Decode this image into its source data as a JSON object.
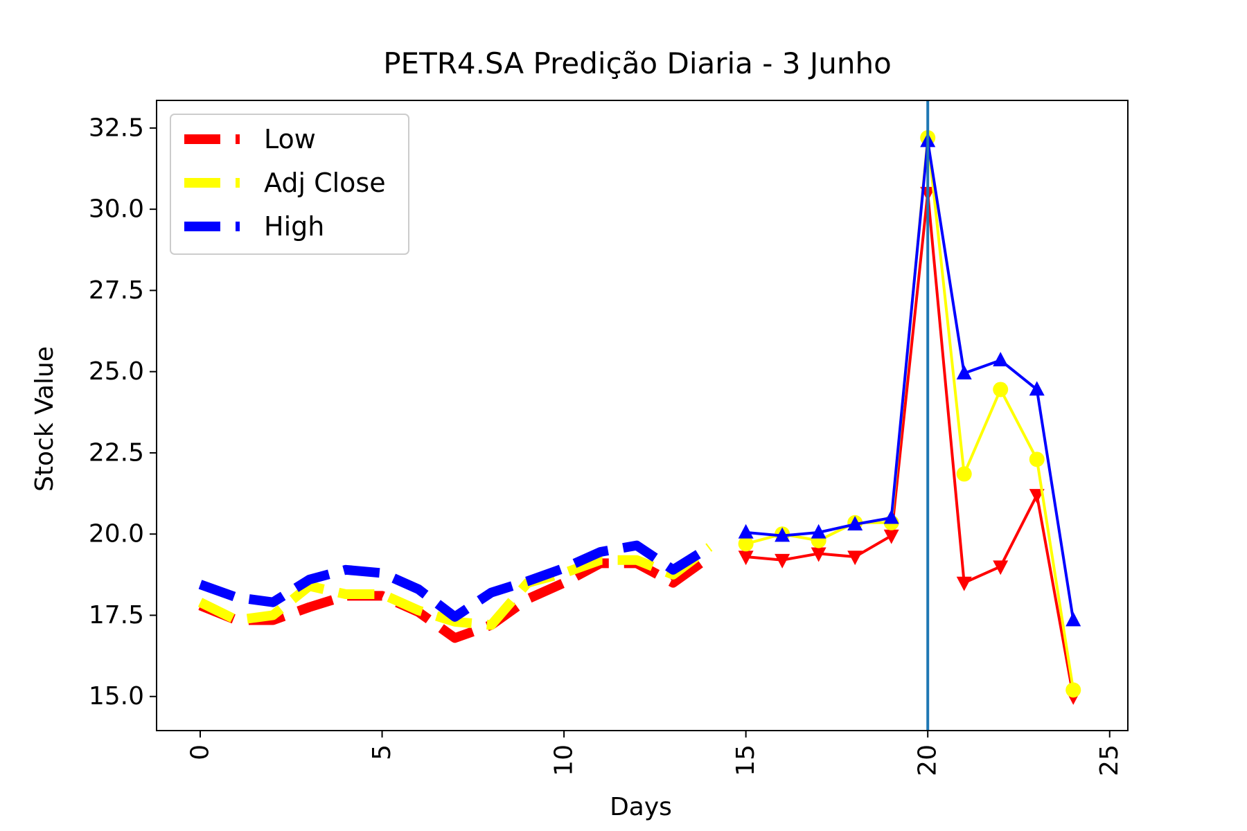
{
  "chart_data": {
    "type": "line",
    "title": "PETR4.SA Predição Diaria - 3 Junho",
    "xlabel": "Days",
    "ylabel": "Stock Value",
    "xlim": [
      -1.2,
      25.5
    ],
    "ylim": [
      13.95,
      33.35
    ],
    "xticks": [
      0,
      5,
      10,
      15,
      20,
      25
    ],
    "xtick_labels": [
      "0",
      "5",
      "10",
      "15",
      "20",
      "25"
    ],
    "yticks": [
      15.0,
      17.5,
      20.0,
      22.5,
      25.0,
      27.5,
      30.0,
      32.5
    ],
    "ytick_labels": [
      "15.0",
      "17.5",
      "20.0",
      "22.5",
      "25.0",
      "27.5",
      "30.0",
      "32.5"
    ],
    "xtick_rotation": "vertical",
    "grid": false,
    "legend_position": "top-left",
    "vline_x": 20,
    "colors": {
      "low": "#ff0000",
      "adj_close": "#ffff00",
      "high": "#0000ff",
      "vline": "#1f77b4"
    },
    "series": [
      {
        "key": "low",
        "name": "Low",
        "historical_x": [
          0,
          1,
          2,
          3,
          4,
          5,
          6,
          7,
          8,
          9,
          10,
          11,
          12,
          13,
          14
        ],
        "historical_y": [
          17.8,
          17.35,
          17.35,
          17.75,
          18.1,
          18.1,
          17.6,
          16.8,
          17.2,
          18.0,
          18.5,
          19.1,
          19.1,
          18.5,
          19.3
        ],
        "predicted_x": [
          15,
          16,
          17,
          18,
          19,
          20,
          21,
          22,
          23,
          24
        ],
        "predicted_y": [
          19.3,
          19.2,
          19.4,
          19.3,
          19.95,
          30.5,
          18.5,
          19.0,
          21.2,
          15.0
        ],
        "marker": "triangle-down"
      },
      {
        "key": "adj_close",
        "name": "Adj Close",
        "historical_x": [
          0,
          1,
          2,
          3,
          4,
          5,
          6,
          7,
          8,
          9,
          10,
          11,
          12,
          13,
          14
        ],
        "historical_y": [
          17.9,
          17.35,
          17.5,
          18.4,
          18.15,
          18.15,
          17.65,
          17.3,
          17.2,
          18.5,
          18.8,
          19.2,
          19.2,
          18.75,
          19.6
        ],
        "predicted_x": [
          15,
          16,
          17,
          18,
          19,
          20,
          21,
          22,
          23,
          24
        ],
        "predicted_y": [
          19.7,
          20.0,
          19.8,
          20.35,
          20.35,
          32.2,
          21.85,
          24.45,
          22.3,
          15.2
        ],
        "marker": "circle"
      },
      {
        "key": "high",
        "name": "High",
        "historical_x": [
          0,
          1,
          2,
          3,
          4,
          5,
          6,
          7,
          8,
          9,
          10,
          11,
          12,
          13,
          14
        ],
        "historical_y": [
          18.45,
          18.05,
          17.9,
          18.6,
          18.9,
          18.8,
          18.3,
          17.45,
          18.2,
          18.55,
          18.95,
          19.45,
          19.65,
          18.9,
          19.6
        ],
        "predicted_x": [
          15,
          16,
          17,
          18,
          19,
          20,
          21,
          22,
          23,
          24
        ],
        "predicted_y": [
          20.05,
          19.95,
          20.05,
          20.3,
          20.5,
          32.1,
          24.95,
          25.35,
          24.45,
          17.35
        ],
        "marker": "triangle-up"
      }
    ]
  }
}
